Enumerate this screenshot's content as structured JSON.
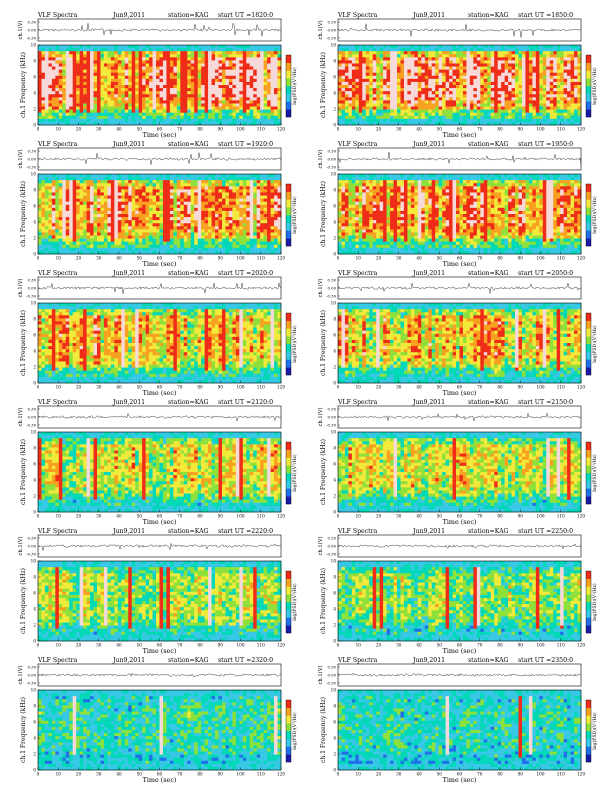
{
  "chart_data": [
    {
      "type": "heatmap",
      "title": "VLF Spectra",
      "date": "Jun9,2011",
      "station": "station=KAG",
      "start_ut": "start UT =1820:0",
      "ylabel_top": "ch.1(V)",
      "ylabel_main": "ch.1 Frequency (kHz)",
      "xlabel": "Time (sec)",
      "colorbar_label": "log(PSD)(V²/Hz)",
      "xlim": [
        0,
        120
      ],
      "ylim": [
        0,
        10
      ],
      "top_ylim": [
        -0.3,
        0.3
      ],
      "top_ticks": [
        "0.30",
        "0.00",
        "-0.30"
      ],
      "x_ticks": [
        0,
        10,
        20,
        30,
        40,
        50,
        60,
        70,
        80,
        90,
        100,
        110,
        120
      ],
      "y_ticks": [
        0,
        2,
        4,
        6,
        8,
        10
      ],
      "activity": 0.95
    },
    {
      "type": "heatmap",
      "title": "VLF Spectra",
      "date": "Jun9,2011",
      "station": "station=KAG",
      "start_ut": "start UT =1850:0",
      "ylabel_top": "ch.1(V)",
      "ylabel_main": "ch.1 Frequency (kHz)",
      "xlabel": "Time (sec)",
      "colorbar_label": "log(PSD)(V²/Hz)",
      "xlim": [
        0,
        120
      ],
      "ylim": [
        0,
        10
      ],
      "top_ylim": [
        -0.3,
        0.3
      ],
      "top_ticks": [
        "0.30",
        "0.00",
        "-0.30"
      ],
      "x_ticks": [
        0,
        10,
        20,
        30,
        40,
        50,
        60,
        70,
        80,
        90,
        100,
        110,
        120
      ],
      "y_ticks": [
        0,
        2,
        4,
        6,
        8,
        10
      ],
      "activity": 0.93
    },
    {
      "type": "heatmap",
      "title": "VLF Spectra",
      "date": "Jun9,2011",
      "station": "station=KAG",
      "start_ut": "start UT =1920:0",
      "ylabel_top": "ch.1(V)",
      "ylabel_main": "ch.1 Frequency (kHz)",
      "xlabel": "Time (sec)",
      "colorbar_label": "log(PSD)(V²/Hz)",
      "xlim": [
        0,
        120
      ],
      "ylim": [
        0,
        10
      ],
      "top_ylim": [
        -0.3,
        0.3
      ],
      "top_ticks": [
        "0.30",
        "0.00",
        "-0.30"
      ],
      "x_ticks": [
        0,
        10,
        20,
        30,
        40,
        50,
        60,
        70,
        80,
        90,
        100,
        110,
        120
      ],
      "y_ticks": [
        0,
        2,
        4,
        6,
        8,
        10
      ],
      "activity": 0.86
    },
    {
      "type": "heatmap",
      "title": "VLF Spectra",
      "date": "Jun9,2011",
      "station": "station=KAG",
      "start_ut": "start UT =1950:0",
      "ylabel_top": "ch.1(V)",
      "ylabel_main": "ch.1 Frequency (kHz)",
      "xlabel": "Time (sec)",
      "colorbar_label": "log(PSD)(V²/Hz)",
      "xlim": [
        0,
        120
      ],
      "ylim": [
        0,
        10
      ],
      "top_ylim": [
        -0.3,
        0.3
      ],
      "top_ticks": [
        "0.30",
        "0.00",
        "-0.30"
      ],
      "x_ticks": [
        0,
        10,
        20,
        30,
        40,
        50,
        60,
        70,
        80,
        90,
        100,
        110,
        120
      ],
      "y_ticks": [
        0,
        2,
        4,
        6,
        8,
        10
      ],
      "activity": 0.84
    },
    {
      "type": "heatmap",
      "title": "VLF Spectra",
      "date": "Jun9,2011",
      "station": "station=KAG",
      "start_ut": "start UT =2020:0",
      "ylabel_top": "ch.1(V)",
      "ylabel_main": "ch.1 Frequency (kHz)",
      "xlabel": "Time (sec)",
      "colorbar_label": "log(PSD)(V²/Hz)",
      "xlim": [
        0,
        120
      ],
      "ylim": [
        0,
        10
      ],
      "top_ylim": [
        -0.3,
        0.3
      ],
      "top_ticks": [
        "0.30",
        "0.00",
        "-0.30"
      ],
      "x_ticks": [
        0,
        10,
        20,
        30,
        40,
        50,
        60,
        70,
        80,
        90,
        100,
        110,
        120
      ],
      "y_ticks": [
        0,
        2,
        4,
        6,
        8,
        10
      ],
      "activity": 0.72
    },
    {
      "type": "heatmap",
      "title": "VLF Spectra",
      "date": "Jun9,2011",
      "station": "station=KAG",
      "start_ut": "start UT =2050:0",
      "ylabel_top": "ch.1(V)",
      "ylabel_main": "ch.1 Frequency (kHz)",
      "xlabel": "Time (sec)",
      "colorbar_label": "log(PSD)(V²/Hz)",
      "xlim": [
        0,
        120
      ],
      "ylim": [
        0,
        10
      ],
      "top_ylim": [
        -0.3,
        0.3
      ],
      "top_ticks": [
        "0.30",
        "0.00",
        "-0.30"
      ],
      "x_ticks": [
        0,
        10,
        20,
        30,
        40,
        50,
        60,
        70,
        80,
        90,
        100,
        110,
        120
      ],
      "y_ticks": [
        0,
        2,
        4,
        6,
        8,
        10
      ],
      "activity": 0.7
    },
    {
      "type": "heatmap",
      "title": "VLF Spectra",
      "date": "Jun9,2011",
      "station": "station=KAG",
      "start_ut": "start UT =2120:0",
      "ylabel_top": "ch.1(V)",
      "ylabel_main": "ch.1 Frequency (kHz)",
      "xlabel": "Time (sec)",
      "colorbar_label": "log(PSD)(V²/Hz)",
      "xlim": [
        0,
        120
      ],
      "ylim": [
        0,
        10
      ],
      "top_ylim": [
        -0.3,
        0.3
      ],
      "top_ticks": [
        "0.30",
        "0.00",
        "-0.30"
      ],
      "x_ticks": [
        0,
        10,
        20,
        30,
        40,
        50,
        60,
        70,
        80,
        90,
        100,
        110,
        120
      ],
      "y_ticks": [
        0,
        2,
        4,
        6,
        8,
        10
      ],
      "activity": 0.58
    },
    {
      "type": "heatmap",
      "title": "VLF Spectra",
      "date": "Jun9,2011",
      "station": "station=KAG",
      "start_ut": "start UT =2150:0",
      "ylabel_top": "ch.1(V)",
      "ylabel_main": "ch.1 Frequency (kHz)",
      "xlabel": "Time (sec)",
      "colorbar_label": "log(PSD)(V²/Hz)",
      "xlim": [
        0,
        120
      ],
      "ylim": [
        0,
        10
      ],
      "top_ylim": [
        -0.3,
        0.3
      ],
      "top_ticks": [
        "0.30",
        "0.00",
        "-0.30"
      ],
      "x_ticks": [
        0,
        10,
        20,
        30,
        40,
        50,
        60,
        70,
        80,
        90,
        100,
        110,
        120
      ],
      "y_ticks": [
        0,
        2,
        4,
        6,
        8,
        10
      ],
      "activity": 0.56
    },
    {
      "type": "heatmap",
      "title": "VLF Spectra",
      "date": "Jun9,2011",
      "station": "station=KAG",
      "start_ut": "start UT =2220:0",
      "ylabel_top": "ch.1(V)",
      "ylabel_main": "ch.1 Frequency (kHz)",
      "xlabel": "Time (sec)",
      "colorbar_label": "log(PSD)(V²/Hz)",
      "xlim": [
        0,
        120
      ],
      "ylim": [
        0,
        10
      ],
      "top_ylim": [
        -0.3,
        0.3
      ],
      "top_ticks": [
        "0.30",
        "0.00",
        "-0.30"
      ],
      "x_ticks": [
        0,
        10,
        20,
        30,
        40,
        50,
        60,
        70,
        80,
        90,
        100,
        110,
        120
      ],
      "y_ticks": [
        0,
        2,
        4,
        6,
        8,
        10
      ],
      "activity": 0.46
    },
    {
      "type": "heatmap",
      "title": "VLF Spectra",
      "date": "Jun9,2011",
      "station": "station=KAG",
      "start_ut": "start UT =2250:0",
      "ylabel_top": "ch.1(V)",
      "ylabel_main": "ch.1 Frequency (kHz)",
      "xlabel": "Time (sec)",
      "colorbar_label": "log(PSD)(V²/Hz)",
      "xlim": [
        0,
        120
      ],
      "ylim": [
        0,
        10
      ],
      "top_ylim": [
        -0.3,
        0.3
      ],
      "top_ticks": [
        "0.30",
        "0.00",
        "-0.30"
      ],
      "x_ticks": [
        0,
        10,
        20,
        30,
        40,
        50,
        60,
        70,
        80,
        90,
        100,
        110,
        120
      ],
      "y_ticks": [
        0,
        2,
        4,
        6,
        8,
        10
      ],
      "activity": 0.4
    },
    {
      "type": "heatmap",
      "title": "VLF Spectra",
      "date": "Jun9,2011",
      "station": "station=KAG",
      "start_ut": "start UT =2320:0",
      "ylabel_top": "ch.1(V)",
      "ylabel_main": "ch.1 Frequency (kHz)",
      "xlabel": "Time (sec)",
      "colorbar_label": "log(PSD)(V²/Hz)",
      "xlim": [
        0,
        120
      ],
      "ylim": [
        0,
        10
      ],
      "top_ylim": [
        -0.3,
        0.3
      ],
      "top_ticks": [
        "0.30",
        "0.00",
        "-0.30"
      ],
      "x_ticks": [
        0,
        10,
        20,
        30,
        40,
        50,
        60,
        70,
        80,
        90,
        100,
        110,
        120
      ],
      "y_ticks": [
        0,
        2,
        4,
        6,
        8,
        10
      ],
      "activity": 0.22
    },
    {
      "type": "heatmap",
      "title": "VLF Spectra",
      "date": "Jun9,2011",
      "station": "station=KAG",
      "start_ut": "start UT =2350:0",
      "ylabel_top": "ch.1(V)",
      "ylabel_main": "ch.1 Frequency (kHz)",
      "xlabel": "Time (sec)",
      "colorbar_label": "log(PSD)(V²/Hz)",
      "xlim": [
        0,
        120
      ],
      "ylim": [
        0,
        10
      ],
      "top_ylim": [
        -0.3,
        0.3
      ],
      "top_ticks": [
        "0.30",
        "0.00",
        "-0.30"
      ],
      "x_ticks": [
        0,
        10,
        20,
        30,
        40,
        50,
        60,
        70,
        80,
        90,
        100,
        110,
        120
      ],
      "y_ticks": [
        0,
        2,
        4,
        6,
        8,
        10
      ],
      "activity": 0.18
    }
  ],
  "colors": {
    "palette": [
      "#1a1aa8",
      "#1e6fe8",
      "#36c8e4",
      "#00d8b8",
      "#8ee03a",
      "#f2ea3a",
      "#f8a020",
      "#ee2c18",
      "#f6dada"
    ],
    "waveform": "#222222",
    "axis": "#000000"
  }
}
